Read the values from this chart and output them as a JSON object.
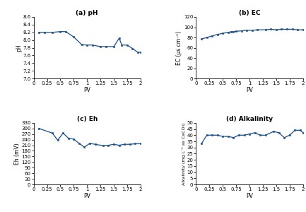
{
  "ph_pv": [
    0.1,
    0.2,
    0.35,
    0.5,
    0.6,
    0.75,
    0.9,
    1.0,
    1.1,
    1.25,
    1.35,
    1.5,
    1.6,
    1.65,
    1.75,
    1.85,
    1.95,
    2.0
  ],
  "ph_val": [
    8.2,
    8.2,
    8.2,
    8.22,
    8.22,
    8.08,
    7.88,
    7.87,
    7.87,
    7.83,
    7.83,
    7.83,
    8.05,
    7.87,
    7.87,
    7.78,
    7.68,
    7.68
  ],
  "ec_pv": [
    0.1,
    0.2,
    0.3,
    0.4,
    0.5,
    0.6,
    0.65,
    0.7,
    0.75,
    0.85,
    0.95,
    1.05,
    1.15,
    1.3,
    1.4,
    1.5,
    1.6,
    1.7,
    1.8,
    1.9,
    2.0
  ],
  "ec_val": [
    77,
    80,
    83,
    86,
    88,
    90,
    91,
    91,
    92,
    93,
    94,
    94,
    95,
    95,
    96,
    95,
    96,
    96,
    96,
    95,
    95
  ],
  "eh_pv": [
    0.1,
    0.35,
    0.45,
    0.55,
    0.65,
    0.75,
    0.85,
    0.95,
    1.05,
    1.15,
    1.3,
    1.4,
    1.5,
    1.6,
    1.7,
    1.8,
    1.9,
    2.0
  ],
  "eh_val": [
    300,
    275,
    237,
    275,
    248,
    243,
    220,
    200,
    220,
    215,
    208,
    210,
    215,
    210,
    215,
    215,
    218,
    218
  ],
  "alk_pv": [
    0.1,
    0.2,
    0.3,
    0.4,
    0.5,
    0.6,
    0.7,
    0.8,
    0.9,
    1.0,
    1.1,
    1.2,
    1.3,
    1.45,
    1.55,
    1.65,
    1.75,
    1.85,
    1.95,
    2.0
  ],
  "alk_val": [
    33,
    40,
    40,
    40,
    39,
    39,
    38,
    40,
    40,
    41,
    42,
    40,
    40,
    43,
    42,
    38,
    40,
    44,
    44,
    42
  ],
  "line_color": "#1a4f8a",
  "marker": "s",
  "markersize": 2.0,
  "linewidth": 0.9,
  "ph_ylim": [
    7.0,
    8.6
  ],
  "ph_yticks": [
    7.0,
    7.2,
    7.4,
    7.6,
    7.8,
    8.0,
    8.2,
    8.4,
    8.6
  ],
  "ec_ylim": [
    0,
    120
  ],
  "ec_yticks": [
    0,
    20,
    40,
    60,
    80,
    100,
    120
  ],
  "eh_ylim": [
    0,
    330
  ],
  "eh_yticks": [
    0,
    30,
    60,
    90,
    120,
    150,
    180,
    210,
    240,
    270,
    300,
    330
  ],
  "alk_ylim": [
    0,
    50
  ],
  "alk_yticks": [
    0,
    5,
    10,
    15,
    20,
    25,
    30,
    35,
    40,
    45,
    50
  ],
  "xlim": [
    0,
    2
  ],
  "xticks": [
    0,
    0.25,
    0.5,
    0.75,
    1.0,
    1.25,
    1.5,
    1.75,
    2.0
  ],
  "xticklabels": [
    "0",
    "0.25",
    "0.5",
    "0.75",
    "1",
    "1.25",
    "1.5",
    "1.75",
    "2"
  ],
  "title_a": "(a) pH",
  "title_b": "(b) EC",
  "title_c": "(c) Eh",
  "title_d": "(d) Alkalinity",
  "xlabel": "PV",
  "ylabel_a": "pH",
  "ylabel_b": "EC (μs cm⁻¹)",
  "ylabel_c": "Eh (mV)",
  "ylabel_d": "Alkalinity (mg L⁻¹ as CaCO₃)"
}
